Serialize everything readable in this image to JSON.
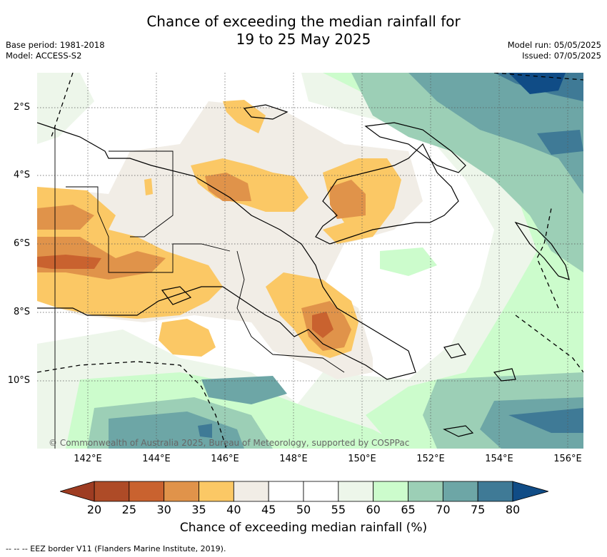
{
  "title": {
    "line1": "Chance of exceeding the median rainfall for",
    "line2": "19 to 25 May 2025"
  },
  "meta_left": {
    "base_period": "Base period: 1981-2018",
    "model": "Model: ACCESS-S2"
  },
  "meta_right": {
    "model_run": "Model run: 05/05/2025",
    "issued": "Issued: 07/05/2025"
  },
  "lat_labels": [
    "2°S",
    "4°S",
    "6°S",
    "8°S",
    "10°S"
  ],
  "lon_labels": [
    "142°E",
    "144°E",
    "146°E",
    "148°E",
    "150°E",
    "152°E",
    "154°E",
    "156°E"
  ],
  "copyright": "© Commonwealth of Australia 2025, Bureau of Meteorology, supported by COSPPac",
  "colorbar": {
    "ticks": [
      "20",
      "25",
      "30",
      "35",
      "40",
      "45",
      "50",
      "55",
      "60",
      "65",
      "70",
      "75",
      "80"
    ],
    "colors": [
      "#ae4b27",
      "#c9622f",
      "#e0934a",
      "#fbc865",
      "#f1ede6",
      "#ffffff",
      "#ffffff",
      "#edf6ea",
      "#ccfccc",
      "#9ccfb6",
      "#6da6a6",
      "#3f7a96"
    ],
    "low_color": "#9e3c22",
    "high_color": "#104c86",
    "label": "Chance of exceeding median rainfall (%)"
  },
  "footer": "--  --  -- EEZ border V11 (Flanders Marine Institute, 2019)."
}
